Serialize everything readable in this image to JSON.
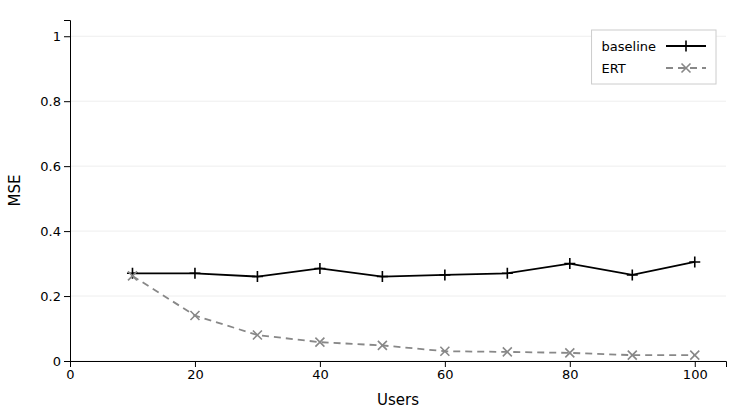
{
  "chart_data": {
    "type": "line",
    "xlabel": "Users",
    "ylabel": "MSE",
    "x": [
      10,
      20,
      30,
      40,
      50,
      60,
      70,
      80,
      90,
      100
    ],
    "series": [
      {
        "name": "baseline",
        "color": "#000000",
        "marker": "plus",
        "line_style": "solid",
        "values": [
          0.27,
          0.27,
          0.26,
          0.285,
          0.26,
          0.265,
          0.27,
          0.3,
          0.265,
          0.305
        ]
      },
      {
        "name": "ERT",
        "color": "#888888",
        "marker": "x",
        "line_style": "dashed",
        "values": [
          0.262,
          0.14,
          0.08,
          0.058,
          0.048,
          0.03,
          0.028,
          0.025,
          0.018,
          0.018
        ]
      }
    ],
    "xlim": [
      0,
      105
    ],
    "ylim": [
      0,
      1.05
    ],
    "xticks": [
      0,
      20,
      40,
      60,
      80,
      100
    ],
    "yticks": [
      0,
      0.2,
      0.4,
      0.6,
      0.8,
      1
    ],
    "legend": "upper right"
  }
}
